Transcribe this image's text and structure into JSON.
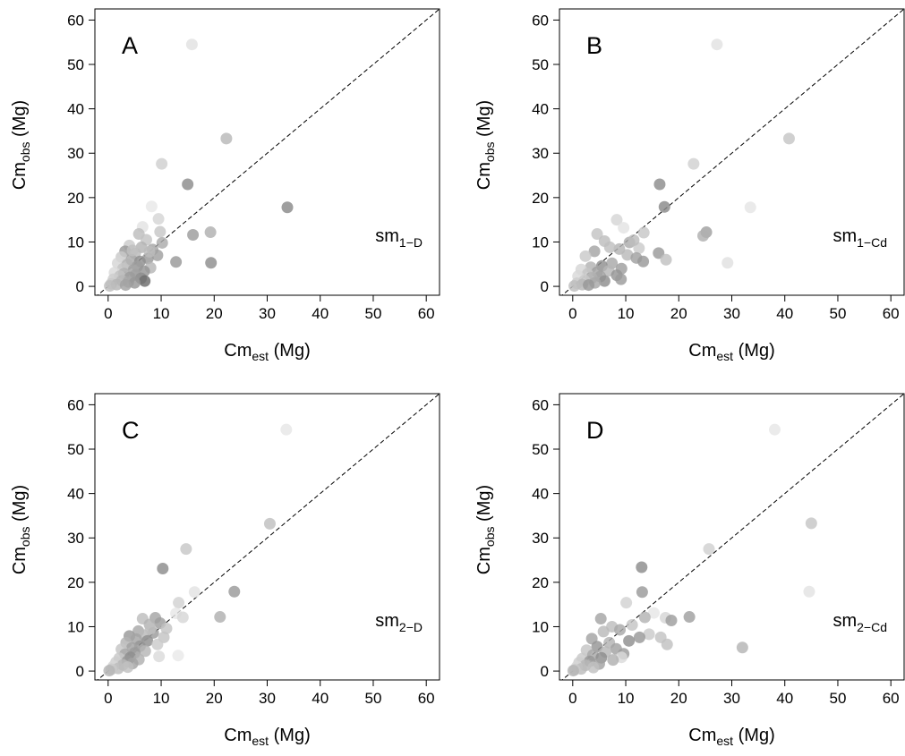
{
  "chart_data": [
    {
      "type": "scatter",
      "panel": "A",
      "model": {
        "base": "sm",
        "sub": "1−D"
      },
      "xlabel": {
        "base": "Cm",
        "sub": "est",
        "unit": "(Mg)"
      },
      "ylabel": {
        "base": "Cm",
        "sub": "obs",
        "unit": "(Mg)"
      },
      "xlim": [
        -2.5,
        62.5
      ],
      "ylim": [
        -2,
        62.5
      ],
      "xticks": [
        "0",
        "10",
        "20",
        "30",
        "40",
        "50",
        "60"
      ],
      "yticks": [
        "0",
        "10",
        "20",
        "30",
        "40",
        "50",
        "60"
      ],
      "reference_line": "1:1 (dashed)",
      "grid": false,
      "points": [
        {
          "x": 15.8,
          "y": 54.5,
          "shade": "#e2e2e2"
        },
        {
          "x": 22.3,
          "y": 33.3,
          "shade": "#b8b8b8"
        },
        {
          "x": 10.1,
          "y": 27.6,
          "shade": "#cfcfcf"
        },
        {
          "x": 15.0,
          "y": 23.0,
          "shade": "#8c8c8c"
        },
        {
          "x": 33.8,
          "y": 17.8,
          "shade": "#8a8a8a"
        },
        {
          "x": 8.2,
          "y": 18.0,
          "shade": "#e8e8e8"
        },
        {
          "x": 9.5,
          "y": 15.2,
          "shade": "#d5d5d5"
        },
        {
          "x": 6.5,
          "y": 13.4,
          "shade": "#e3e3e3"
        },
        {
          "x": 19.3,
          "y": 12.2,
          "shade": "#b0b0b0"
        },
        {
          "x": 16.0,
          "y": 11.6,
          "shade": "#9c9c9c"
        },
        {
          "x": 9.8,
          "y": 12.3,
          "shade": "#c7c7c7"
        },
        {
          "x": 5.8,
          "y": 11.8,
          "shade": "#bdbdbd"
        },
        {
          "x": 10.2,
          "y": 9.8,
          "shade": "#ababab"
        },
        {
          "x": 7.2,
          "y": 10.5,
          "shade": "#c3c3c3"
        },
        {
          "x": 4.0,
          "y": 9.2,
          "shade": "#cbcbcb"
        },
        {
          "x": 6.3,
          "y": 8.8,
          "shade": "#b3b3b3"
        },
        {
          "x": 8.4,
          "y": 8.3,
          "shade": "#a5a5a5"
        },
        {
          "x": 3.2,
          "y": 7.9,
          "shade": "#9a9a9a"
        },
        {
          "x": 5.1,
          "y": 7.4,
          "shade": "#b9b9b9"
        },
        {
          "x": 9.3,
          "y": 7.0,
          "shade": "#a0a0a0"
        },
        {
          "x": 2.5,
          "y": 6.6,
          "shade": "#c9c9c9"
        },
        {
          "x": 7.5,
          "y": 6.3,
          "shade": "#999999"
        },
        {
          "x": 4.4,
          "y": 6.0,
          "shade": "#a8a8a8"
        },
        {
          "x": 6.0,
          "y": 5.6,
          "shade": "#8f8f8f"
        },
        {
          "x": 12.8,
          "y": 5.5,
          "shade": "#999999"
        },
        {
          "x": 19.4,
          "y": 5.3,
          "shade": "#8d8d8d"
        },
        {
          "x": 1.8,
          "y": 5.2,
          "shade": "#d6d6d6"
        },
        {
          "x": 3.6,
          "y": 4.9,
          "shade": "#b2b2b2"
        },
        {
          "x": 5.5,
          "y": 4.5,
          "shade": "#9e9e9e"
        },
        {
          "x": 8.0,
          "y": 4.2,
          "shade": "#b6b6b6"
        },
        {
          "x": 2.8,
          "y": 4.0,
          "shade": "#c4c4c4"
        },
        {
          "x": 4.8,
          "y": 3.7,
          "shade": "#a3a3a3"
        },
        {
          "x": 6.8,
          "y": 3.4,
          "shade": "#959595"
        },
        {
          "x": 1.2,
          "y": 3.1,
          "shade": "#d9d9d9"
        },
        {
          "x": 3.0,
          "y": 2.9,
          "shade": "#b0b0b0"
        },
        {
          "x": 5.2,
          "y": 2.6,
          "shade": "#a1a1a1"
        },
        {
          "x": 2.2,
          "y": 2.3,
          "shade": "#c1c1c1"
        },
        {
          "x": 4.1,
          "y": 2.0,
          "shade": "#9b9b9b"
        },
        {
          "x": 6.2,
          "y": 1.8,
          "shade": "#8e8e8e"
        },
        {
          "x": 6.9,
          "y": 1.2,
          "shade": "#6d6d6d"
        },
        {
          "x": 1.0,
          "y": 1.6,
          "shade": "#cdcdcd"
        },
        {
          "x": 2.6,
          "y": 1.3,
          "shade": "#b7b7b7"
        },
        {
          "x": 3.8,
          "y": 1.0,
          "shade": "#a7a7a7"
        },
        {
          "x": 5.0,
          "y": 0.8,
          "shade": "#979797"
        },
        {
          "x": 0.6,
          "y": 0.6,
          "shade": "#c8c8c8"
        },
        {
          "x": 1.6,
          "y": 0.4,
          "shade": "#b4b4b4"
        },
        {
          "x": 3.3,
          "y": 0.3,
          "shade": "#a2a2a2"
        },
        {
          "x": 0.3,
          "y": 0.1,
          "shade": "#bdbdbd"
        },
        {
          "x": 7.8,
          "y": 7.8,
          "shade": "#bcbcbc"
        },
        {
          "x": 4.6,
          "y": 8.1,
          "shade": "#c0c0c0"
        }
      ]
    },
    {
      "type": "scatter",
      "panel": "B",
      "model": {
        "base": "sm",
        "sub": "1−Cd"
      },
      "xlabel": {
        "base": "Cm",
        "sub": "est",
        "unit": "(Mg)"
      },
      "ylabel": {
        "base": "Cm",
        "sub": "obs",
        "unit": "(Mg)"
      },
      "xlim": [
        -2.5,
        62.5
      ],
      "ylim": [
        -2,
        62.5
      ],
      "xticks": [
        "0",
        "10",
        "20",
        "30",
        "40",
        "50",
        "60"
      ],
      "yticks": [
        "0",
        "10",
        "20",
        "30",
        "40",
        "50",
        "60"
      ],
      "reference_line": "1:1 (dashed)",
      "grid": false,
      "points": [
        {
          "x": 27.2,
          "y": 54.5,
          "shade": "#e2e2e2"
        },
        {
          "x": 40.8,
          "y": 33.3,
          "shade": "#c6c6c6"
        },
        {
          "x": 22.8,
          "y": 27.6,
          "shade": "#d1d1d1"
        },
        {
          "x": 16.4,
          "y": 23.0,
          "shade": "#8c8c8c"
        },
        {
          "x": 33.5,
          "y": 17.8,
          "shade": "#e5e5e5"
        },
        {
          "x": 17.3,
          "y": 17.9,
          "shade": "#8a8a8a"
        },
        {
          "x": 8.3,
          "y": 15.0,
          "shade": "#d5d5d5"
        },
        {
          "x": 9.6,
          "y": 13.2,
          "shade": "#e3e3e3"
        },
        {
          "x": 25.2,
          "y": 12.2,
          "shade": "#a0a0a0"
        },
        {
          "x": 24.6,
          "y": 11.4,
          "shade": "#b0b0b0"
        },
        {
          "x": 13.4,
          "y": 12.1,
          "shade": "#c7c7c7"
        },
        {
          "x": 4.6,
          "y": 11.8,
          "shade": "#c3c3c3"
        },
        {
          "x": 10.7,
          "y": 9.9,
          "shade": "#ababab"
        },
        {
          "x": 6.0,
          "y": 10.2,
          "shade": "#bdbdbd"
        },
        {
          "x": 12.5,
          "y": 8.6,
          "shade": "#cbcbcb"
        },
        {
          "x": 8.8,
          "y": 8.4,
          "shade": "#b3b3b3"
        },
        {
          "x": 4.1,
          "y": 7.9,
          "shade": "#a5a5a5"
        },
        {
          "x": 16.2,
          "y": 7.5,
          "shade": "#9a9a9a"
        },
        {
          "x": 10.3,
          "y": 7.1,
          "shade": "#b9b9b9"
        },
        {
          "x": 2.4,
          "y": 6.8,
          "shade": "#c9c9c9"
        },
        {
          "x": 12.0,
          "y": 6.4,
          "shade": "#a0a0a0"
        },
        {
          "x": 17.6,
          "y": 6.0,
          "shade": "#c1c1c1"
        },
        {
          "x": 13.3,
          "y": 5.6,
          "shade": "#999999"
        },
        {
          "x": 29.2,
          "y": 5.3,
          "shade": "#e0e0e0"
        },
        {
          "x": 7.4,
          "y": 5.2,
          "shade": "#a8a8a8"
        },
        {
          "x": 5.5,
          "y": 4.6,
          "shade": "#8f8f8f"
        },
        {
          "x": 3.4,
          "y": 4.3,
          "shade": "#b2b2b2"
        },
        {
          "x": 9.2,
          "y": 4.0,
          "shade": "#9e9e9e"
        },
        {
          "x": 1.6,
          "y": 3.8,
          "shade": "#d6d6d6"
        },
        {
          "x": 6.8,
          "y": 3.5,
          "shade": "#b6b6b6"
        },
        {
          "x": 4.6,
          "y": 3.2,
          "shade": "#a3a3a3"
        },
        {
          "x": 2.8,
          "y": 2.8,
          "shade": "#c4c4c4"
        },
        {
          "x": 8.3,
          "y": 2.5,
          "shade": "#959595"
        },
        {
          "x": 5.2,
          "y": 2.2,
          "shade": "#a1a1a1"
        },
        {
          "x": 1.0,
          "y": 2.3,
          "shade": "#d9d9d9"
        },
        {
          "x": 3.6,
          "y": 1.9,
          "shade": "#b0b0b0"
        },
        {
          "x": 9.1,
          "y": 1.6,
          "shade": "#9b9b9b"
        },
        {
          "x": 6.0,
          "y": 1.2,
          "shade": "#8e8e8e"
        },
        {
          "x": 2.2,
          "y": 1.3,
          "shade": "#c8c8c8"
        },
        {
          "x": 4.2,
          "y": 0.8,
          "shade": "#a7a7a7"
        },
        {
          "x": 0.8,
          "y": 0.7,
          "shade": "#cdcdcd"
        },
        {
          "x": 1.8,
          "y": 0.4,
          "shade": "#b7b7b7"
        },
        {
          "x": 3.0,
          "y": 0.3,
          "shade": "#979797"
        },
        {
          "x": 0.3,
          "y": 0.1,
          "shade": "#bdbdbd"
        },
        {
          "x": 11.5,
          "y": 10.4,
          "shade": "#bcbcbc"
        },
        {
          "x": 7.0,
          "y": 8.8,
          "shade": "#c0c0c0"
        }
      ]
    },
    {
      "type": "scatter",
      "panel": "C",
      "model": {
        "base": "sm",
        "sub": "2−D"
      },
      "xlabel": {
        "base": "Cm",
        "sub": "est",
        "unit": "(Mg)"
      },
      "ylabel": {
        "base": "Cm",
        "sub": "obs",
        "unit": "(Mg)"
      },
      "xlim": [
        -2.5,
        62.5
      ],
      "ylim": [
        -2,
        62.5
      ],
      "xticks": [
        "0",
        "10",
        "20",
        "30",
        "40",
        "50",
        "60"
      ],
      "yticks": [
        "0",
        "10",
        "20",
        "30",
        "40",
        "50",
        "60"
      ],
      "reference_line": "1:1 (dashed)",
      "grid": false,
      "points": [
        {
          "x": 33.6,
          "y": 54.4,
          "shade": "#e6e6e6"
        },
        {
          "x": 30.5,
          "y": 33.2,
          "shade": "#c0c0c0"
        },
        {
          "x": 14.7,
          "y": 27.5,
          "shade": "#c7c7c7"
        },
        {
          "x": 10.3,
          "y": 23.1,
          "shade": "#8c8c8c"
        },
        {
          "x": 16.3,
          "y": 17.8,
          "shade": "#e3e3e3"
        },
        {
          "x": 23.8,
          "y": 17.9,
          "shade": "#9a9a9a"
        },
        {
          "x": 13.3,
          "y": 15.4,
          "shade": "#d2d2d2"
        },
        {
          "x": 12.8,
          "y": 13.0,
          "shade": "#e6e6e6"
        },
        {
          "x": 21.1,
          "y": 12.2,
          "shade": "#b0b0b0"
        },
        {
          "x": 14.1,
          "y": 12.1,
          "shade": "#d7d7d7"
        },
        {
          "x": 8.9,
          "y": 12.0,
          "shade": "#a5a5a5"
        },
        {
          "x": 6.5,
          "y": 11.8,
          "shade": "#bdbdbd"
        },
        {
          "x": 9.8,
          "y": 10.8,
          "shade": "#9e9e9e"
        },
        {
          "x": 7.8,
          "y": 10.5,
          "shade": "#b3b3b3"
        },
        {
          "x": 11.0,
          "y": 9.6,
          "shade": "#c5c5c5"
        },
        {
          "x": 5.7,
          "y": 9.0,
          "shade": "#a8a8a8"
        },
        {
          "x": 8.5,
          "y": 8.6,
          "shade": "#9b9b9b"
        },
        {
          "x": 6.8,
          "y": 8.1,
          "shade": "#b9b9b9"
        },
        {
          "x": 4.0,
          "y": 7.9,
          "shade": "#999999"
        },
        {
          "x": 10.5,
          "y": 7.6,
          "shade": "#c3c3c3"
        },
        {
          "x": 5.3,
          "y": 7.2,
          "shade": "#a3a3a3"
        },
        {
          "x": 7.4,
          "y": 6.8,
          "shade": "#8f8f8f"
        },
        {
          "x": 3.4,
          "y": 6.4,
          "shade": "#b2b2b2"
        },
        {
          "x": 9.3,
          "y": 6.0,
          "shade": "#cbcbcb"
        },
        {
          "x": 6.0,
          "y": 5.6,
          "shade": "#959595"
        },
        {
          "x": 4.5,
          "y": 5.2,
          "shade": "#a1a1a1"
        },
        {
          "x": 2.5,
          "y": 4.9,
          "shade": "#c4c4c4"
        },
        {
          "x": 7.0,
          "y": 4.5,
          "shade": "#b6b6b6"
        },
        {
          "x": 5.0,
          "y": 4.1,
          "shade": "#9b9b9b"
        },
        {
          "x": 3.2,
          "y": 3.8,
          "shade": "#a7a7a7"
        },
        {
          "x": 13.2,
          "y": 3.5,
          "shade": "#e9e9e9"
        },
        {
          "x": 9.6,
          "y": 3.3,
          "shade": "#dadada"
        },
        {
          "x": 4.2,
          "y": 3.1,
          "shade": "#8e8e8e"
        },
        {
          "x": 2.1,
          "y": 2.9,
          "shade": "#c8c8c8"
        },
        {
          "x": 5.8,
          "y": 2.6,
          "shade": "#b0b0b0"
        },
        {
          "x": 3.6,
          "y": 2.2,
          "shade": "#979797"
        },
        {
          "x": 1.5,
          "y": 2.0,
          "shade": "#cdcdcd"
        },
        {
          "x": 4.6,
          "y": 1.7,
          "shade": "#a2a2a2"
        },
        {
          "x": 2.8,
          "y": 1.4,
          "shade": "#b7b7b7"
        },
        {
          "x": 1.0,
          "y": 1.1,
          "shade": "#d6d6d6"
        },
        {
          "x": 3.7,
          "y": 0.9,
          "shade": "#c1c1c1"
        },
        {
          "x": 1.9,
          "y": 0.6,
          "shade": "#bcbcbc"
        },
        {
          "x": 0.6,
          "y": 0.4,
          "shade": "#c9c9c9"
        },
        {
          "x": 0.2,
          "y": 0.1,
          "shade": "#b4b4b4"
        },
        {
          "x": 8.0,
          "y": 9.5,
          "shade": "#c0c0c0"
        }
      ]
    },
    {
      "type": "scatter",
      "panel": "D",
      "model": {
        "base": "sm",
        "sub": "2−Cd"
      },
      "xlabel": {
        "base": "Cm",
        "sub": "est",
        "unit": "(Mg)"
      },
      "ylabel": {
        "base": "Cm",
        "sub": "obs",
        "unit": "(Mg)"
      },
      "xlim": [
        -2.5,
        62.5
      ],
      "ylim": [
        -2,
        62.5
      ],
      "xticks": [
        "0",
        "10",
        "20",
        "30",
        "40",
        "50",
        "60"
      ],
      "yticks": [
        "0",
        "10",
        "20",
        "30",
        "40",
        "50",
        "60"
      ],
      "reference_line": "1:1 (dashed)",
      "grid": false,
      "points": [
        {
          "x": 38.1,
          "y": 54.4,
          "shade": "#e6e6e6"
        },
        {
          "x": 45.0,
          "y": 33.3,
          "shade": "#c6c6c6"
        },
        {
          "x": 25.7,
          "y": 27.5,
          "shade": "#d1d1d1"
        },
        {
          "x": 13.0,
          "y": 23.4,
          "shade": "#8c8c8c"
        },
        {
          "x": 44.6,
          "y": 17.9,
          "shade": "#e3e3e3"
        },
        {
          "x": 13.1,
          "y": 17.8,
          "shade": "#9a9a9a"
        },
        {
          "x": 10.1,
          "y": 15.4,
          "shade": "#d2d2d2"
        },
        {
          "x": 15.3,
          "y": 13.1,
          "shade": "#e6e6e6"
        },
        {
          "x": 22.0,
          "y": 12.2,
          "shade": "#a0a0a0"
        },
        {
          "x": 17.5,
          "y": 12.0,
          "shade": "#d5d5d5"
        },
        {
          "x": 13.6,
          "y": 12.1,
          "shade": "#b3b3b3"
        },
        {
          "x": 5.3,
          "y": 11.8,
          "shade": "#a5a5a5"
        },
        {
          "x": 18.6,
          "y": 11.4,
          "shade": "#9e9e9e"
        },
        {
          "x": 11.2,
          "y": 10.4,
          "shade": "#c5c5c5"
        },
        {
          "x": 7.4,
          "y": 10.0,
          "shade": "#bdbdbd"
        },
        {
          "x": 8.9,
          "y": 9.3,
          "shade": "#a8a8a8"
        },
        {
          "x": 5.8,
          "y": 8.9,
          "shade": "#b9b9b9"
        },
        {
          "x": 14.4,
          "y": 8.3,
          "shade": "#cbcbcb"
        },
        {
          "x": 12.6,
          "y": 7.6,
          "shade": "#999999"
        },
        {
          "x": 16.6,
          "y": 7.6,
          "shade": "#c3c3c3"
        },
        {
          "x": 3.6,
          "y": 7.3,
          "shade": "#a3a3a3"
        },
        {
          "x": 10.6,
          "y": 6.8,
          "shade": "#8f8f8f"
        },
        {
          "x": 6.9,
          "y": 6.4,
          "shade": "#b2b2b2"
        },
        {
          "x": 17.8,
          "y": 6.0,
          "shade": "#c1c1c1"
        },
        {
          "x": 32.0,
          "y": 5.3,
          "shade": "#b5b5b5"
        },
        {
          "x": 4.6,
          "y": 5.5,
          "shade": "#959595"
        },
        {
          "x": 8.2,
          "y": 5.0,
          "shade": "#a1a1a1"
        },
        {
          "x": 2.6,
          "y": 4.7,
          "shade": "#c4c4c4"
        },
        {
          "x": 6.2,
          "y": 4.3,
          "shade": "#b6b6b6"
        },
        {
          "x": 9.6,
          "y": 3.9,
          "shade": "#9b9b9b"
        },
        {
          "x": 3.8,
          "y": 3.6,
          "shade": "#a7a7a7"
        },
        {
          "x": 9.2,
          "y": 3.1,
          "shade": "#dadada"
        },
        {
          "x": 5.4,
          "y": 3.0,
          "shade": "#8e8e8e"
        },
        {
          "x": 1.8,
          "y": 2.8,
          "shade": "#c8c8c8"
        },
        {
          "x": 7.6,
          "y": 2.5,
          "shade": "#b0b0b0"
        },
        {
          "x": 3.2,
          "y": 2.2,
          "shade": "#979797"
        },
        {
          "x": 1.2,
          "y": 1.9,
          "shade": "#cdcdcd"
        },
        {
          "x": 5.0,
          "y": 1.6,
          "shade": "#a2a2a2"
        },
        {
          "x": 2.4,
          "y": 1.3,
          "shade": "#b7b7b7"
        },
        {
          "x": 0.8,
          "y": 1.0,
          "shade": "#d6d6d6"
        },
        {
          "x": 3.9,
          "y": 0.8,
          "shade": "#c1c1c1"
        },
        {
          "x": 1.6,
          "y": 0.5,
          "shade": "#bcbcbc"
        },
        {
          "x": 0.4,
          "y": 0.3,
          "shade": "#c9c9c9"
        },
        {
          "x": 0.1,
          "y": 0.1,
          "shade": "#b4b4b4"
        }
      ]
    }
  ]
}
